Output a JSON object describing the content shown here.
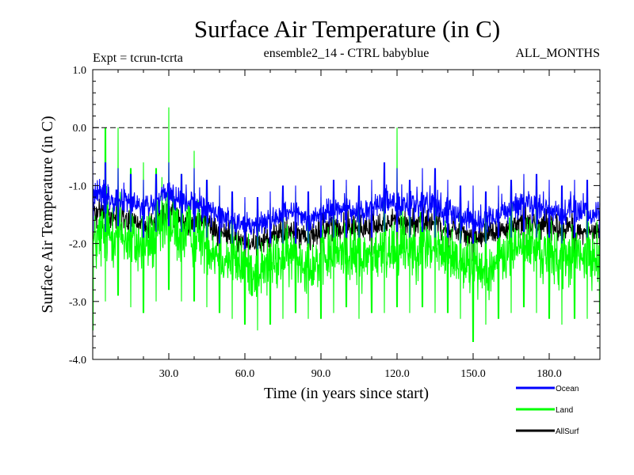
{
  "chart_data": {
    "type": "line",
    "title": "Surface Air Temperature (in C)",
    "subtitle_left": "Expt = tcrun-tcrta",
    "subtitle_center": "ensemble2_14 - CTRL babyblue",
    "subtitle_right": "ALL_MONTHS",
    "xlabel": "Time (in years since start)",
    "ylabel": "Surface Air Temperature (in C)",
    "xlim": [
      0,
      200
    ],
    "ylim": [
      -4.0,
      1.0
    ],
    "x_ticks": [
      30,
      60,
      90,
      120,
      150,
      180
    ],
    "x_tick_labels": [
      "30.0",
      "60.0",
      "90.0",
      "120.0",
      "150.0",
      "180.0"
    ],
    "y_ticks": [
      1.0,
      0.0,
      -1.0,
      -2.0,
      -3.0,
      -4.0
    ],
    "y_tick_labels": [
      "1.0",
      "0.0",
      "-1.0",
      "-2.0",
      "-3.0",
      "-4.0"
    ],
    "reference_line": {
      "y": 0.0,
      "style": "dashed"
    },
    "grid": false,
    "legend_position": "bottom-right",
    "series": [
      {
        "name": "Land",
        "color": "#00ff00",
        "x": [
          0,
          5,
          10,
          15,
          20,
          25,
          30,
          35,
          40,
          45,
          50,
          55,
          60,
          65,
          70,
          75,
          80,
          85,
          90,
          95,
          100,
          105,
          110,
          115,
          120,
          125,
          130,
          135,
          140,
          145,
          150,
          155,
          160,
          165,
          170,
          175,
          180,
          185,
          190,
          195,
          200
        ],
        "y": [
          -2.0,
          -1.9,
          -1.8,
          -2.0,
          -2.1,
          -1.9,
          -1.7,
          -1.9,
          -1.8,
          -2.0,
          -2.2,
          -2.3,
          -2.4,
          -2.5,
          -2.4,
          -2.3,
          -2.2,
          -2.4,
          -2.3,
          -2.2,
          -2.1,
          -2.3,
          -2.2,
          -2.2,
          -2.0,
          -2.1,
          -2.0,
          -2.1,
          -2.2,
          -2.3,
          -2.4,
          -2.5,
          -2.3,
          -2.1,
          -2.0,
          -2.1,
          -2.2,
          -2.3,
          -2.2,
          -2.3,
          -2.2
        ],
        "y_min": [
          -3.5,
          -3.0,
          -2.9,
          -3.1,
          -3.2,
          -3.0,
          -2.8,
          -3.0,
          -3.0,
          -3.1,
          -3.2,
          -3.3,
          -3.4,
          -3.5,
          -3.4,
          -3.3,
          -3.2,
          -3.3,
          -3.3,
          -3.2,
          -3.1,
          -3.3,
          -3.2,
          -3.2,
          -3.1,
          -3.2,
          -3.1,
          -3.2,
          -3.2,
          -3.3,
          -3.7,
          -3.4,
          -3.3,
          -3.2,
          -3.1,
          -3.2,
          -3.3,
          -3.4,
          -3.3,
          -3.3,
          -3.2
        ],
        "y_max": [
          -1.0,
          0.0,
          0.0,
          -0.7,
          -0.6,
          -0.7,
          0.35,
          -0.8,
          -0.4,
          -0.9,
          -1.0,
          -1.2,
          -1.3,
          -1.4,
          -1.3,
          -1.2,
          -1.1,
          -1.3,
          -1.2,
          -1.1,
          -1.0,
          -1.2,
          -1.1,
          -1.1,
          0.0,
          -1.0,
          -0.9,
          -1.0,
          -1.1,
          -1.2,
          -1.3,
          -1.4,
          -1.2,
          -1.0,
          -0.9,
          -1.0,
          -1.1,
          -1.2,
          -1.1,
          -1.2,
          -1.1
        ]
      },
      {
        "name": "Ocean",
        "color": "#0000ff",
        "x": [
          0,
          5,
          10,
          15,
          20,
          25,
          30,
          35,
          40,
          45,
          50,
          55,
          60,
          65,
          70,
          75,
          80,
          85,
          90,
          95,
          100,
          105,
          110,
          115,
          120,
          125,
          130,
          135,
          140,
          145,
          150,
          155,
          160,
          165,
          170,
          175,
          180,
          185,
          190,
          195,
          200
        ],
        "y": [
          -1.1,
          -1.2,
          -1.2,
          -1.3,
          -1.4,
          -1.3,
          -1.1,
          -1.3,
          -1.3,
          -1.4,
          -1.5,
          -1.6,
          -1.7,
          -1.7,
          -1.6,
          -1.5,
          -1.5,
          -1.6,
          -1.5,
          -1.4,
          -1.4,
          -1.5,
          -1.4,
          -1.3,
          -1.3,
          -1.4,
          -1.3,
          -1.4,
          -1.5,
          -1.5,
          -1.6,
          -1.6,
          -1.5,
          -1.4,
          -1.3,
          -1.4,
          -1.4,
          -1.5,
          -1.4,
          -1.5,
          -1.5
        ],
        "y_min": [
          -1.8,
          -1.8,
          -1.7,
          -1.8,
          -1.9,
          -1.8,
          -1.7,
          -1.8,
          -1.8,
          -1.9,
          -2.0,
          -2.0,
          -2.1,
          -2.1,
          -2.0,
          -2.0,
          -2.0,
          -2.0,
          -1.9,
          -1.9,
          -1.9,
          -1.9,
          -1.9,
          -1.8,
          -1.8,
          -1.9,
          -1.8,
          -1.9,
          -1.9,
          -2.0,
          -2.0,
          -2.0,
          -1.9,
          -1.9,
          -1.8,
          -1.9,
          -1.9,
          -2.0,
          -1.9,
          -1.9,
          -1.9
        ],
        "y_max": [
          -0.5,
          -0.6,
          -0.7,
          -0.8,
          -0.9,
          -0.8,
          -0.6,
          -0.8,
          -0.7,
          -0.9,
          -1.0,
          -1.1,
          -1.2,
          -1.2,
          -1.1,
          -1.0,
          -1.0,
          -1.1,
          -1.0,
          -0.9,
          -0.9,
          -1.0,
          -0.9,
          -0.6,
          -0.7,
          -0.9,
          -0.7,
          -0.7,
          -0.9,
          -1.0,
          -1.0,
          -1.1,
          -1.0,
          -0.9,
          -0.8,
          -0.8,
          -0.9,
          -1.0,
          -0.9,
          -0.9,
          -1.0
        ]
      },
      {
        "name": "AllSurf",
        "color": "#000000",
        "x": [
          0,
          5,
          10,
          15,
          20,
          25,
          30,
          35,
          40,
          45,
          50,
          55,
          60,
          65,
          70,
          75,
          80,
          85,
          90,
          95,
          100,
          105,
          110,
          115,
          120,
          125,
          130,
          135,
          140,
          145,
          150,
          155,
          160,
          165,
          170,
          175,
          180,
          185,
          190,
          195,
          200
        ],
        "y": [
          -1.4,
          -1.5,
          -1.5,
          -1.6,
          -1.7,
          -1.6,
          -1.4,
          -1.6,
          -1.6,
          -1.7,
          -1.8,
          -1.9,
          -2.0,
          -2.0,
          -1.9,
          -1.8,
          -1.8,
          -1.9,
          -1.8,
          -1.7,
          -1.7,
          -1.8,
          -1.7,
          -1.7,
          -1.6,
          -1.7,
          -1.6,
          -1.7,
          -1.8,
          -1.8,
          -1.9,
          -1.9,
          -1.8,
          -1.7,
          -1.6,
          -1.7,
          -1.7,
          -1.8,
          -1.7,
          -1.8,
          -1.8
        ],
        "y_min": [
          -2.0,
          -2.1,
          -2.0,
          -2.1,
          -2.2,
          -2.1,
          -2.0,
          -2.1,
          -2.1,
          -2.2,
          -2.3,
          -2.3,
          -2.4,
          -2.4,
          -2.3,
          -2.3,
          -2.3,
          -2.3,
          -2.2,
          -2.2,
          -2.2,
          -2.2,
          -2.2,
          -2.1,
          -2.1,
          -2.2,
          -2.1,
          -2.2,
          -2.2,
          -2.3,
          -2.3,
          -2.3,
          -2.2,
          -2.2,
          -2.1,
          -2.2,
          -2.2,
          -2.3,
          -2.2,
          -2.2,
          -2.2
        ],
        "y_max": [
          -0.9,
          -1.0,
          -1.0,
          -1.1,
          -1.2,
          -1.1,
          -0.9,
          -1.1,
          -1.1,
          -1.2,
          -1.3,
          -1.4,
          -1.5,
          -1.5,
          -1.4,
          -1.3,
          -1.3,
          -1.4,
          -1.3,
          -1.2,
          -1.2,
          -1.3,
          -1.2,
          -1.2,
          -1.1,
          -1.2,
          -1.1,
          -1.2,
          -1.3,
          -1.3,
          -1.4,
          -1.4,
          -1.3,
          -1.2,
          -1.1,
          -1.2,
          -1.2,
          -1.3,
          -1.2,
          -1.3,
          -1.3
        ]
      }
    ],
    "legend_order": [
      "Ocean",
      "Land",
      "AllSurf"
    ]
  }
}
